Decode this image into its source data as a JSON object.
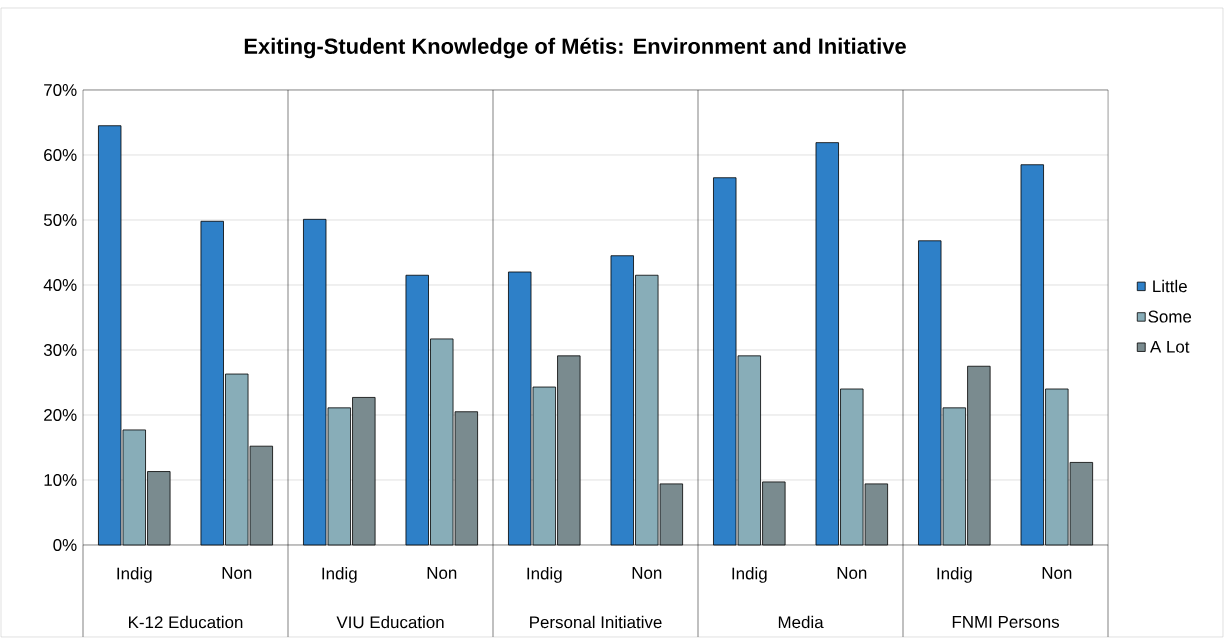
{
  "chart_data": {
    "type": "bar",
    "title": "Exiting-Student Knowledge of Métis: Environment and Initiative",
    "categories": [
      "Indig",
      "Non",
      "Indig",
      "Non",
      "Indig",
      "Non",
      "Indig",
      "Non",
      "Indig",
      "Non"
    ],
    "annotations": [
      "K-12 Education",
      "VIU Education",
      "Personal Initiative",
      "Media",
      "FNMI Persons"
    ],
    "series": [
      {
        "name": "Little",
        "color": "#2e80c8",
        "values": [
          64.5,
          49.8,
          50.1,
          41.5,
          42.0,
          44.5,
          56.5,
          61.9,
          46.8,
          58.5
        ]
      },
      {
        "name": "Some",
        "color": "#88adb8",
        "values": [
          17.7,
          26.3,
          21.1,
          31.7,
          24.3,
          41.5,
          29.1,
          24.0,
          21.1,
          24.0
        ]
      },
      {
        "name": "A Lot",
        "color": "#7a8b8f",
        "values": [
          11.3,
          15.2,
          22.7,
          20.5,
          29.1,
          9.4,
          9.7,
          9.4,
          27.5,
          12.7
        ]
      }
    ],
    "ylim": [
      0,
      70
    ],
    "yticks": [
      {
        "value": 0,
        "label": "0%"
      },
      {
        "value": 10,
        "label": "10%"
      },
      {
        "value": 20,
        "label": "20%"
      },
      {
        "value": 30,
        "label": "30%"
      },
      {
        "value": 40,
        "label": "40%"
      },
      {
        "value": 50,
        "label": "50%"
      },
      {
        "value": 60,
        "label": "60%"
      },
      {
        "value": 70,
        "label": "70%"
      }
    ],
    "grid": "y",
    "legend": "right"
  }
}
